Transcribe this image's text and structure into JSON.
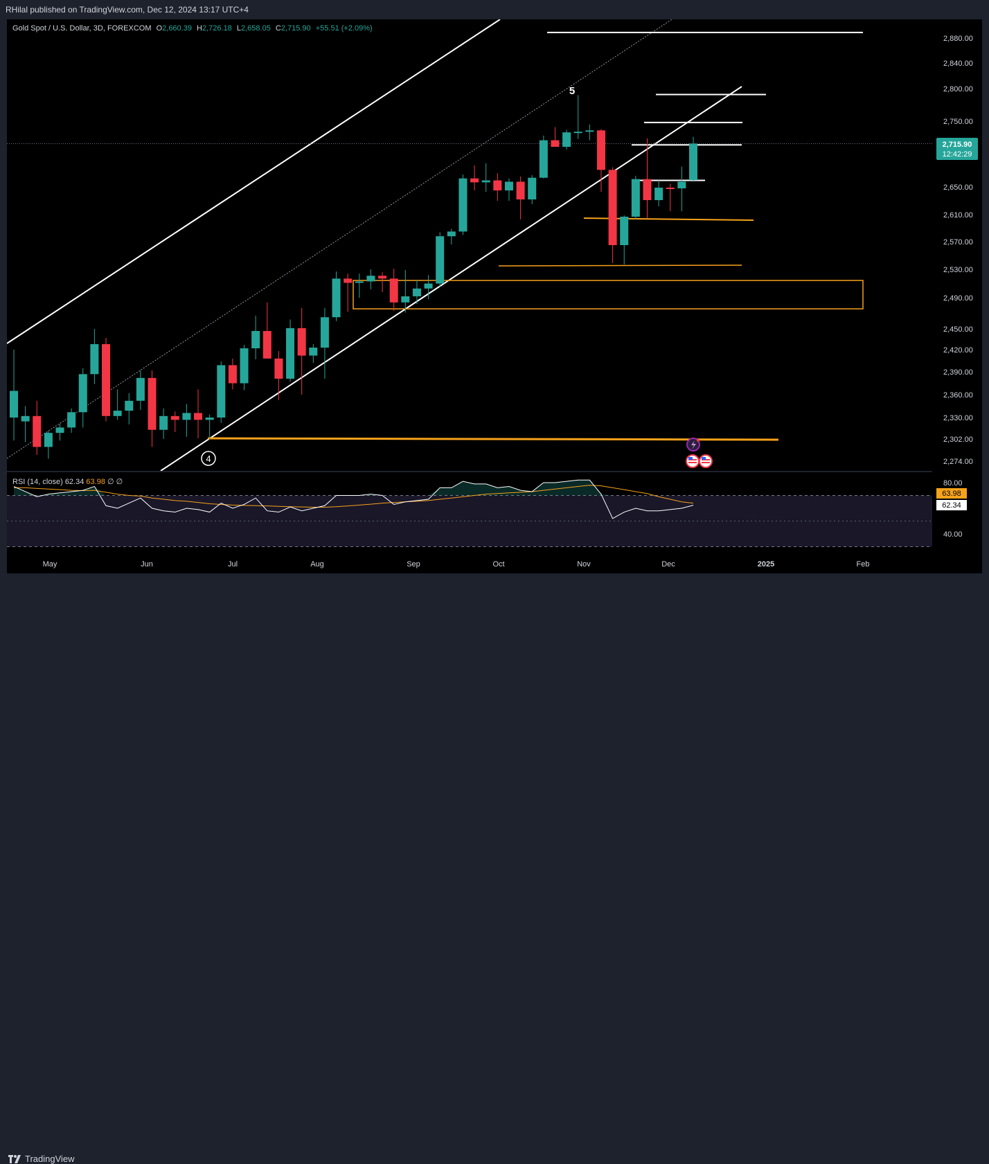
{
  "header": {
    "publisher": "RHilal published on TradingView.com, Dec 12, 2024 13:17 UTC+4"
  },
  "legend": {
    "symbol": "Gold Spot / U.S. Dollar, 3D, FOREXCOM",
    "o_label": "O",
    "o": "2,660.39",
    "h_label": "H",
    "h": "2,726.18",
    "l_label": "L",
    "l": "2,658.05",
    "c_label": "C",
    "c": "2,715.90",
    "change": "+55.51 (+2.09%)"
  },
  "rsi_legend": {
    "name": "RSI (14, close)",
    "rsi": "62.34",
    "ma": "63.98",
    "na1": "∅",
    "na2": "∅"
  },
  "price_badge": {
    "price": "2,715.90",
    "countdown": "12:42:29"
  },
  "rsi_badges": {
    "ma": "63.98",
    "rsi": "62.34"
  },
  "footer": {
    "brand": "TradingView"
  },
  "colors": {
    "up": "#26a69a",
    "down": "#f23645",
    "orange": "#f7a21b",
    "white": "#ffffff",
    "bg": "#000000"
  },
  "annotations": {
    "wave4": "4",
    "wave5": "5"
  },
  "chart_data": [
    {
      "type": "candlestick",
      "title": "Gold Spot / U.S. Dollar, 3D, FOREXCOM",
      "y_ticks": [
        2274,
        2302,
        2330,
        2360,
        2390,
        2420,
        2450,
        2490,
        2530,
        2570,
        2610,
        2650,
        2750,
        2800,
        2840,
        2880
      ],
      "y_tick_labels": [
        "2,274.00",
        "2,302.00",
        "2,330.00",
        "2,360.00",
        "2,390.00",
        "2,420.00",
        "2,450.00",
        "2,490.00",
        "2,530.00",
        "2,570.00",
        "2,610.00",
        "2,650.00",
        "2,750.00",
        "2,800.00",
        "2,840.00",
        "2,880.00"
      ],
      "x_labels": [
        "May",
        "Jun",
        "Jul",
        "Aug",
        "Sep",
        "Oct",
        "Nov",
        "Dec",
        "2025",
        "Feb"
      ],
      "last_price": 2715.9,
      "candles": [
        {
          "o": 2330,
          "h": 2420,
          "l": 2300,
          "c": 2365
        },
        {
          "o": 2325,
          "h": 2345,
          "l": 2298,
          "c": 2332
        },
        {
          "o": 2332,
          "h": 2352,
          "l": 2282,
          "c": 2292
        },
        {
          "o": 2292,
          "h": 2312,
          "l": 2277,
          "c": 2310
        },
        {
          "o": 2310,
          "h": 2322,
          "l": 2300,
          "c": 2317
        },
        {
          "o": 2317,
          "h": 2342,
          "l": 2310,
          "c": 2337
        },
        {
          "o": 2337,
          "h": 2395,
          "l": 2317,
          "c": 2387
        },
        {
          "o": 2387,
          "h": 2450,
          "l": 2374,
          "c": 2428
        },
        {
          "o": 2428,
          "h": 2437,
          "l": 2325,
          "c": 2332
        },
        {
          "o": 2332,
          "h": 2367,
          "l": 2327,
          "c": 2339
        },
        {
          "o": 2339,
          "h": 2362,
          "l": 2321,
          "c": 2352
        },
        {
          "o": 2352,
          "h": 2392,
          "l": 2340,
          "c": 2382
        },
        {
          "o": 2382,
          "h": 2392,
          "l": 2292,
          "c": 2314
        },
        {
          "o": 2314,
          "h": 2342,
          "l": 2302,
          "c": 2332
        },
        {
          "o": 2332,
          "h": 2338,
          "l": 2311,
          "c": 2327
        },
        {
          "o": 2327,
          "h": 2348,
          "l": 2305,
          "c": 2336
        },
        {
          "o": 2336,
          "h": 2367,
          "l": 2303,
          "c": 2327
        },
        {
          "o": 2327,
          "h": 2334,
          "l": 2302,
          "c": 2330
        },
        {
          "o": 2330,
          "h": 2404,
          "l": 2323,
          "c": 2399
        },
        {
          "o": 2399,
          "h": 2408,
          "l": 2367,
          "c": 2375
        },
        {
          "o": 2375,
          "h": 2427,
          "l": 2366,
          "c": 2422
        },
        {
          "o": 2422,
          "h": 2467,
          "l": 2407,
          "c": 2447
        },
        {
          "o": 2447,
          "h": 2484,
          "l": 2409,
          "c": 2408
        },
        {
          "o": 2408,
          "h": 2418,
          "l": 2353,
          "c": 2381
        },
        {
          "o": 2381,
          "h": 2462,
          "l": 2377,
          "c": 2451
        },
        {
          "o": 2451,
          "h": 2477,
          "l": 2360,
          "c": 2412
        },
        {
          "o": 2412,
          "h": 2428,
          "l": 2402,
          "c": 2423
        },
        {
          "o": 2423,
          "h": 2477,
          "l": 2381,
          "c": 2465
        },
        {
          "o": 2465,
          "h": 2527,
          "l": 2460,
          "c": 2517
        },
        {
          "o": 2517,
          "h": 2524,
          "l": 2472,
          "c": 2511
        },
        {
          "o": 2511,
          "h": 2524,
          "l": 2490,
          "c": 2513
        },
        {
          "o": 2513,
          "h": 2530,
          "l": 2502,
          "c": 2521
        },
        {
          "o": 2521,
          "h": 2526,
          "l": 2498,
          "c": 2517
        },
        {
          "o": 2517,
          "h": 2531,
          "l": 2473,
          "c": 2484
        },
        {
          "o": 2484,
          "h": 2529,
          "l": 2471,
          "c": 2492
        },
        {
          "o": 2492,
          "h": 2515,
          "l": 2482,
          "c": 2503
        },
        {
          "o": 2503,
          "h": 2522,
          "l": 2488,
          "c": 2510
        },
        {
          "o": 2510,
          "h": 2584,
          "l": 2505,
          "c": 2578
        },
        {
          "o": 2578,
          "h": 2589,
          "l": 2566,
          "c": 2585
        },
        {
          "o": 2585,
          "h": 2669,
          "l": 2580,
          "c": 2663
        },
        {
          "o": 2663,
          "h": 2683,
          "l": 2645,
          "c": 2657
        },
        {
          "o": 2657,
          "h": 2686,
          "l": 2643,
          "c": 2660
        },
        {
          "o": 2660,
          "h": 2671,
          "l": 2630,
          "c": 2645
        },
        {
          "o": 2645,
          "h": 2663,
          "l": 2630,
          "c": 2658
        },
        {
          "o": 2658,
          "h": 2666,
          "l": 2603,
          "c": 2632
        },
        {
          "o": 2632,
          "h": 2668,
          "l": 2625,
          "c": 2664
        },
        {
          "o": 2664,
          "h": 2728,
          "l": 2663,
          "c": 2721
        },
        {
          "o": 2721,
          "h": 2741,
          "l": 2712,
          "c": 2711
        },
        {
          "o": 2711,
          "h": 2737,
          "l": 2707,
          "c": 2733
        },
        {
          "o": 2733,
          "h": 2790,
          "l": 2723,
          "c": 2734
        },
        {
          "o": 2734,
          "h": 2745,
          "l": 2721,
          "c": 2736
        },
        {
          "o": 2736,
          "h": 2738,
          "l": 2643,
          "c": 2676
        },
        {
          "o": 2676,
          "h": 2680,
          "l": 2539,
          "c": 2565
        },
        {
          "o": 2565,
          "h": 2609,
          "l": 2537,
          "c": 2607
        },
        {
          "o": 2607,
          "h": 2667,
          "l": 2603,
          "c": 2662
        },
        {
          "o": 2662,
          "h": 2724,
          "l": 2605,
          "c": 2631
        },
        {
          "o": 2631,
          "h": 2660,
          "l": 2622,
          "c": 2649
        },
        {
          "o": 2649,
          "h": 2655,
          "l": 2615,
          "c": 2648
        },
        {
          "o": 2648,
          "h": 2681,
          "l": 2615,
          "c": 2658
        },
        {
          "o": 2660.39,
          "h": 2726.18,
          "l": 2658.05,
          "c": 2715.9
        }
      ]
    },
    {
      "type": "line",
      "title": "RSI (14, close)",
      "y_ticks": [
        40,
        80
      ],
      "y_tick_labels": [
        "40.00",
        "80.00"
      ],
      "series": [
        {
          "name": "RSI",
          "values": [
            77,
            73,
            69,
            71,
            72,
            73,
            74,
            77,
            62,
            60,
            64,
            68,
            60,
            58,
            57,
            60,
            59,
            57,
            64,
            60,
            63,
            68,
            58,
            57,
            61,
            58,
            60,
            62,
            70,
            70,
            70,
            71,
            70,
            63,
            65,
            66,
            67,
            76,
            76,
            81,
            79,
            79,
            76,
            77,
            74,
            73,
            80,
            80,
            81,
            82,
            82,
            71,
            52,
            57,
            60,
            58,
            58,
            59,
            60,
            62.34
          ]
        },
        {
          "name": "MA",
          "values": [
            76,
            76,
            75.5,
            75,
            74.5,
            74,
            73.8,
            74,
            72.5,
            71,
            70,
            69.5,
            68,
            67,
            66,
            65.5,
            64.5,
            63.5,
            63,
            62.5,
            62.2,
            62,
            61.8,
            61.5,
            61.2,
            61,
            60.8,
            60.8,
            61.2,
            61.8,
            62.5,
            63.2,
            64,
            64.5,
            65,
            65.5,
            66,
            67,
            68,
            69,
            70,
            71,
            71.5,
            72,
            72.5,
            73,
            74,
            75,
            76,
            77,
            78,
            77.5,
            76,
            74.5,
            73,
            71.5,
            69,
            67,
            65,
            63.98
          ]
        }
      ],
      "overbought": 70,
      "oversold": 30
    }
  ]
}
